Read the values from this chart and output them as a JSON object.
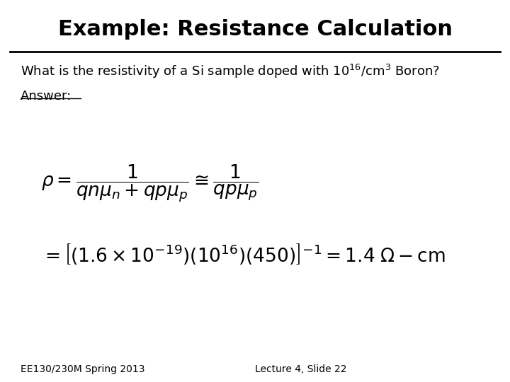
{
  "title": "Example: Resistance Calculation",
  "question_text": "What is the resistivity of a Si sample doped with $10^{16}$/cm$^3$ Boron?",
  "answer_label": "Answer:",
  "footer_left": "EE130/230M Spring 2013",
  "footer_right": "Lecture 4, Slide 22",
  "bg_color": "#ffffff",
  "text_color": "#000000",
  "title_fontsize": 22,
  "body_fontsize": 13,
  "answer_fontsize": 13,
  "formula_fontsize": 19,
  "footer_fontsize": 10
}
